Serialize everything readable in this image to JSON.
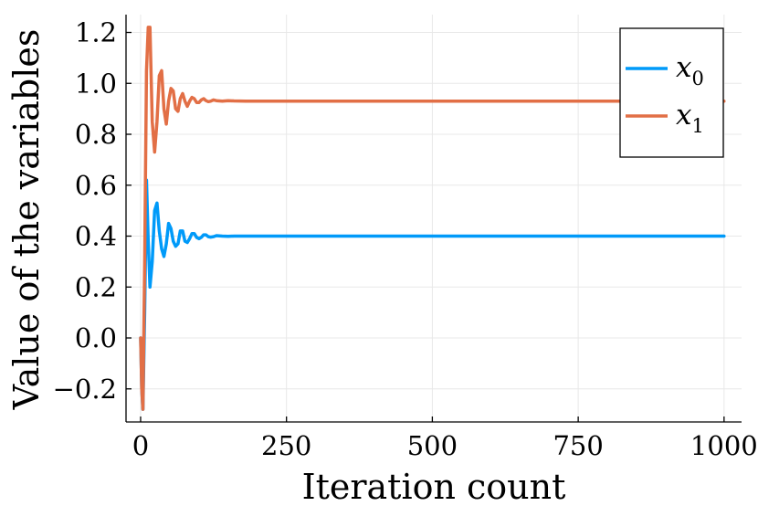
{
  "chart_data": {
    "type": "line",
    "title": "",
    "xlabel": "Iteration count",
    "ylabel": "Value of the variables",
    "xlim": [
      -25,
      1030
    ],
    "ylim": [
      -0.33,
      1.27
    ],
    "xticks": [
      0,
      250,
      500,
      750,
      1000
    ],
    "xtick_labels": [
      "0",
      "250",
      "500",
      "750",
      "1000"
    ],
    "yticks": [
      -0.2,
      0.0,
      0.2,
      0.4,
      0.6,
      0.8,
      1.0,
      1.2
    ],
    "ytick_labels": [
      "−0.2",
      "0.0",
      "0.2",
      "0.4",
      "0.6",
      "0.8",
      "1.0",
      "1.2"
    ],
    "grid": true,
    "legend_position": "top-right",
    "series": [
      {
        "name": "x",
        "subscript": "0",
        "color": "#009af9",
        "x": [
          0,
          2,
          4,
          7,
          10,
          13,
          16,
          20,
          24,
          28,
          32,
          36,
          40,
          44,
          48,
          52,
          56,
          60,
          64,
          68,
          72,
          76,
          80,
          84,
          88,
          92,
          96,
          100,
          104,
          108,
          112,
          116,
          120,
          125,
          130,
          140,
          150,
          160,
          180,
          200,
          1000
        ],
        "y": [
          0.0,
          -0.2,
          -0.28,
          0.1,
          0.62,
          0.38,
          0.2,
          0.3,
          0.5,
          0.53,
          0.42,
          0.35,
          0.32,
          0.37,
          0.45,
          0.43,
          0.38,
          0.36,
          0.37,
          0.42,
          0.42,
          0.38,
          0.375,
          0.39,
          0.41,
          0.41,
          0.395,
          0.39,
          0.395,
          0.405,
          0.405,
          0.398,
          0.396,
          0.398,
          0.402,
          0.4,
          0.399,
          0.4,
          0.4,
          0.4,
          0.4
        ]
      },
      {
        "name": "x",
        "subscript": "1",
        "color": "#e26f46",
        "x": [
          0,
          2,
          4,
          7,
          10,
          13,
          16,
          20,
          24,
          28,
          32,
          36,
          40,
          44,
          48,
          52,
          56,
          60,
          64,
          68,
          72,
          76,
          80,
          84,
          88,
          92,
          96,
          100,
          104,
          108,
          112,
          116,
          120,
          125,
          130,
          140,
          150,
          160,
          180,
          200,
          1000
        ],
        "y": [
          0.0,
          -0.2,
          -0.28,
          0.3,
          1.05,
          1.22,
          1.22,
          0.85,
          0.73,
          0.85,
          1.03,
          1.05,
          0.9,
          0.84,
          0.93,
          0.98,
          0.97,
          0.9,
          0.89,
          0.94,
          0.96,
          0.93,
          0.91,
          0.93,
          0.945,
          0.94,
          0.925,
          0.925,
          0.935,
          0.94,
          0.932,
          0.928,
          0.93,
          0.935,
          0.932,
          0.93,
          0.932,
          0.931,
          0.93,
          0.93,
          0.93
        ]
      }
    ]
  }
}
